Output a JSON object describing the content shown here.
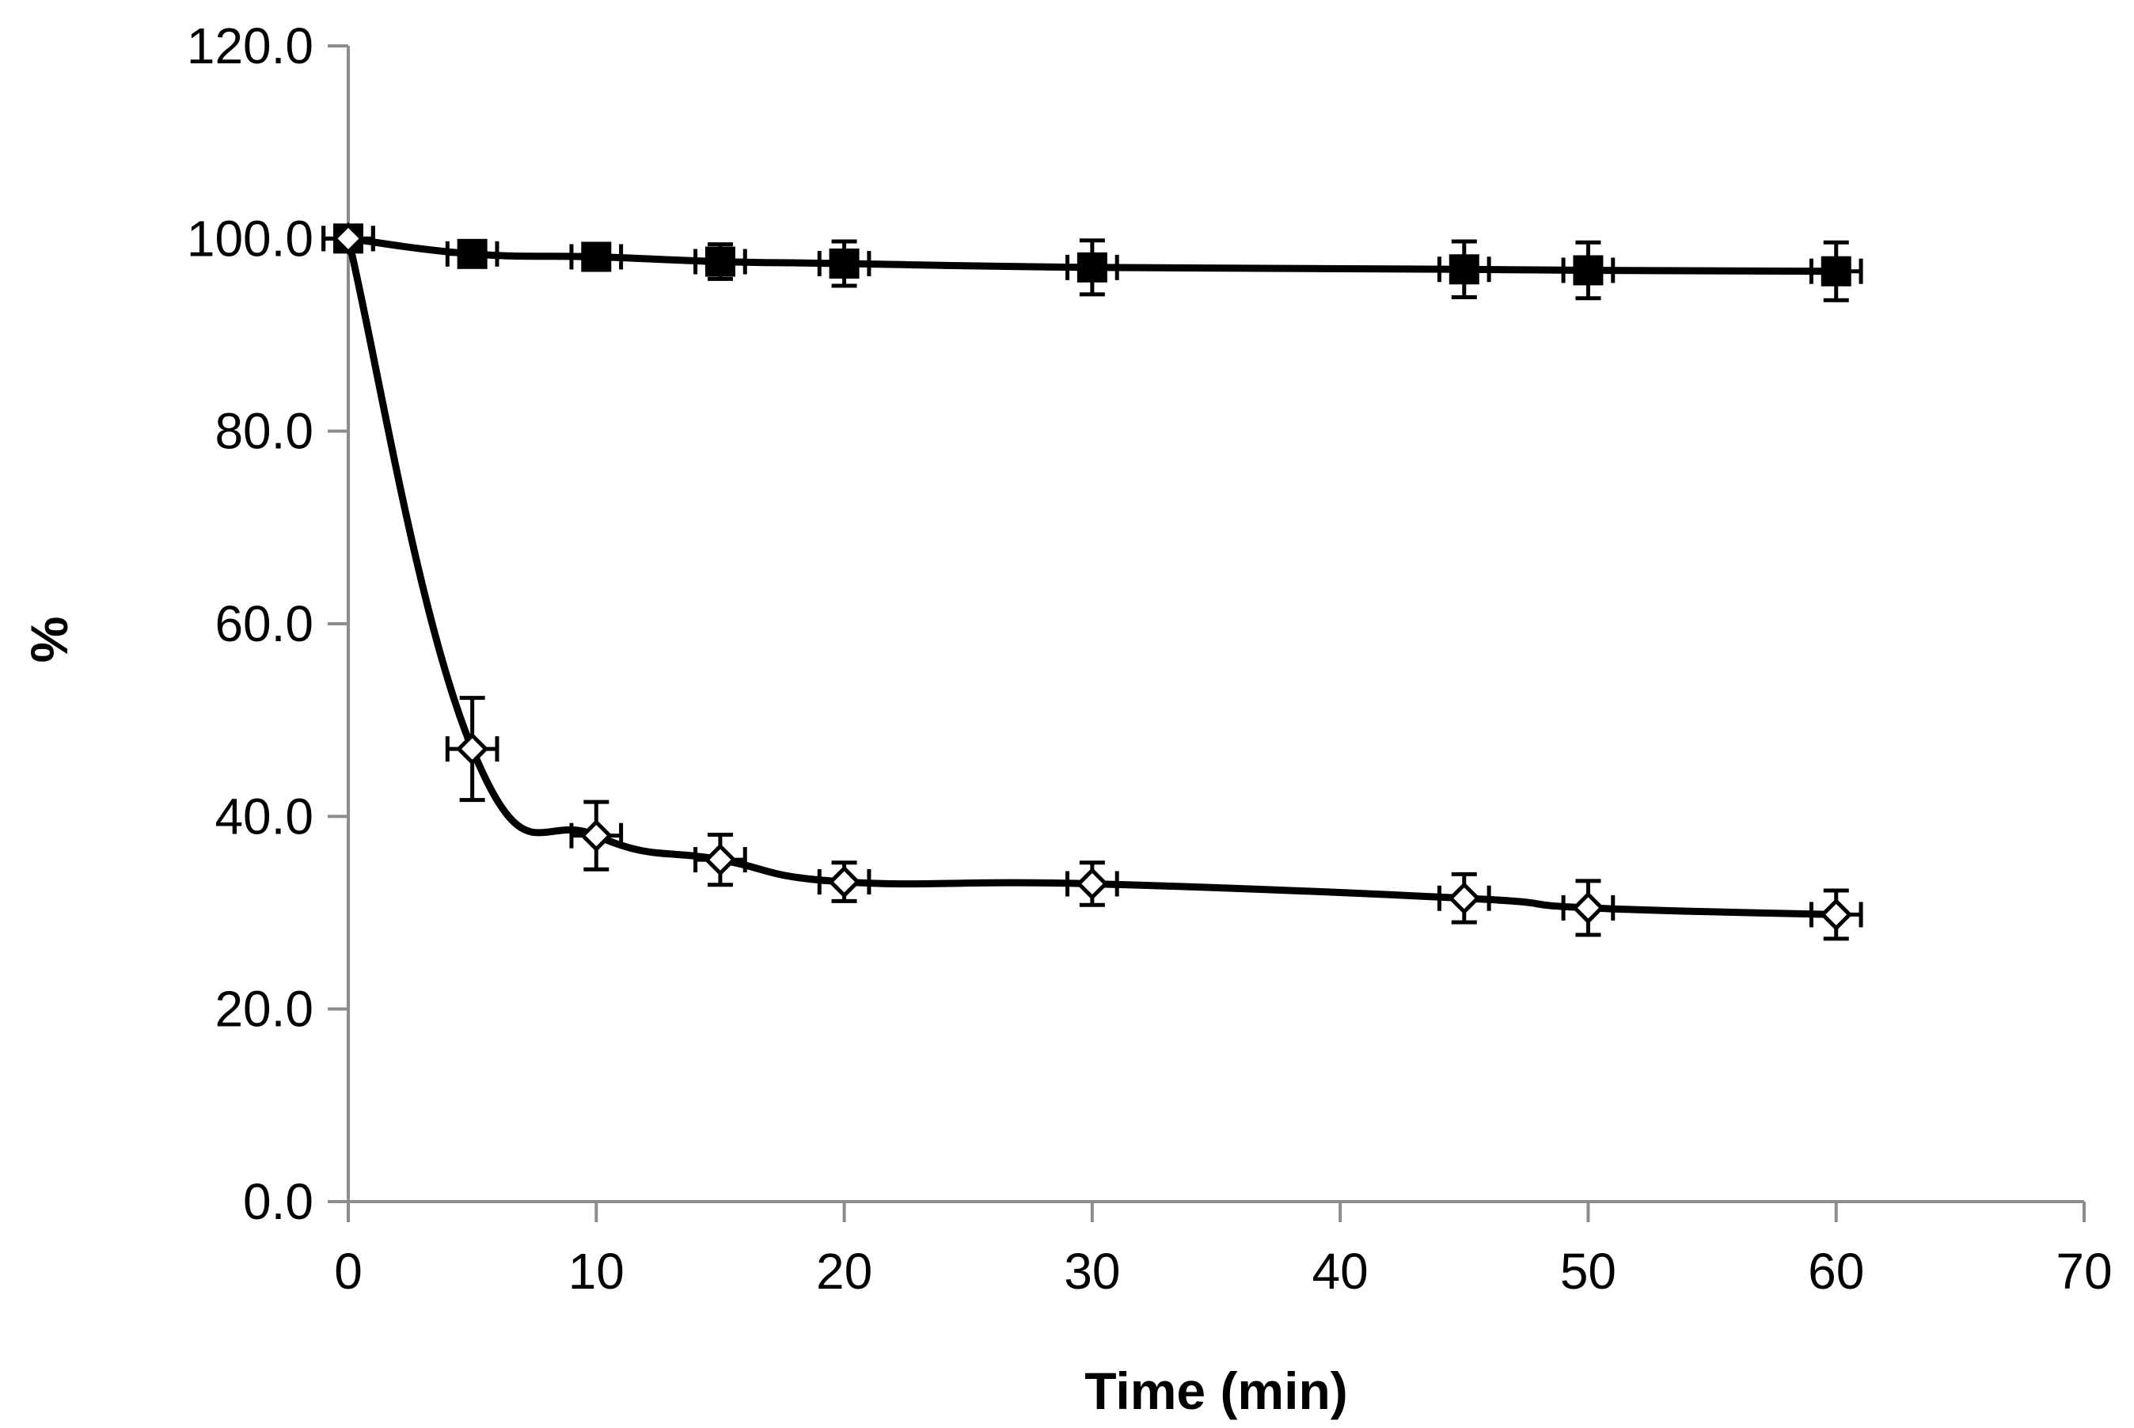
{
  "chart_data": {
    "type": "line",
    "title": "",
    "xlabel": "Time (min)",
    "ylabel": "%",
    "xlim": [
      0,
      70
    ],
    "ylim": [
      0,
      120
    ],
    "x_ticks": [
      0,
      10,
      20,
      30,
      40,
      50,
      60,
      70
    ],
    "y_ticks": [
      0,
      20,
      40,
      60,
      80,
      100,
      120
    ],
    "x_tick_labels": [
      "0",
      "10",
      "20",
      "30",
      "40",
      "50",
      "60",
      "70"
    ],
    "y_tick_labels": [
      "0.0",
      "20.0",
      "40.0",
      "60.0",
      "80.0",
      "100.0",
      "120.0"
    ],
    "grid": false,
    "legend": "none",
    "line_color": "#000000",
    "axis_color": "#8c8c8c",
    "series": [
      {
        "name": "filled-square-series",
        "marker": "filled-square",
        "x": [
          0,
          5,
          10,
          15,
          20,
          30,
          45,
          50,
          60
        ],
        "values": [
          100.0,
          98.4,
          98.1,
          97.6,
          97.4,
          97.0,
          96.8,
          96.7,
          96.6
        ],
        "y_err": [
          0.5,
          1.0,
          1.2,
          1.8,
          2.3,
          2.8,
          2.9,
          2.9,
          3.0
        ],
        "x_err": [
          1.0,
          1.0,
          1.0,
          1.0,
          1.0,
          1.0,
          1.0,
          1.0,
          1.0
        ]
      },
      {
        "name": "open-diamond-series",
        "marker": "open-diamond",
        "x": [
          0,
          5,
          10,
          15,
          20,
          30,
          45,
          50,
          60
        ],
        "values": [
          100.0,
          47.0,
          38.0,
          35.5,
          33.2,
          33.0,
          31.5,
          30.5,
          29.8
        ],
        "y_err": [
          0.5,
          5.3,
          3.5,
          2.6,
          2.0,
          2.2,
          2.5,
          2.8,
          2.5
        ],
        "x_err": [
          1.0,
          1.0,
          1.0,
          1.0,
          1.0,
          1.0,
          1.0,
          1.0,
          1.0
        ]
      }
    ]
  }
}
